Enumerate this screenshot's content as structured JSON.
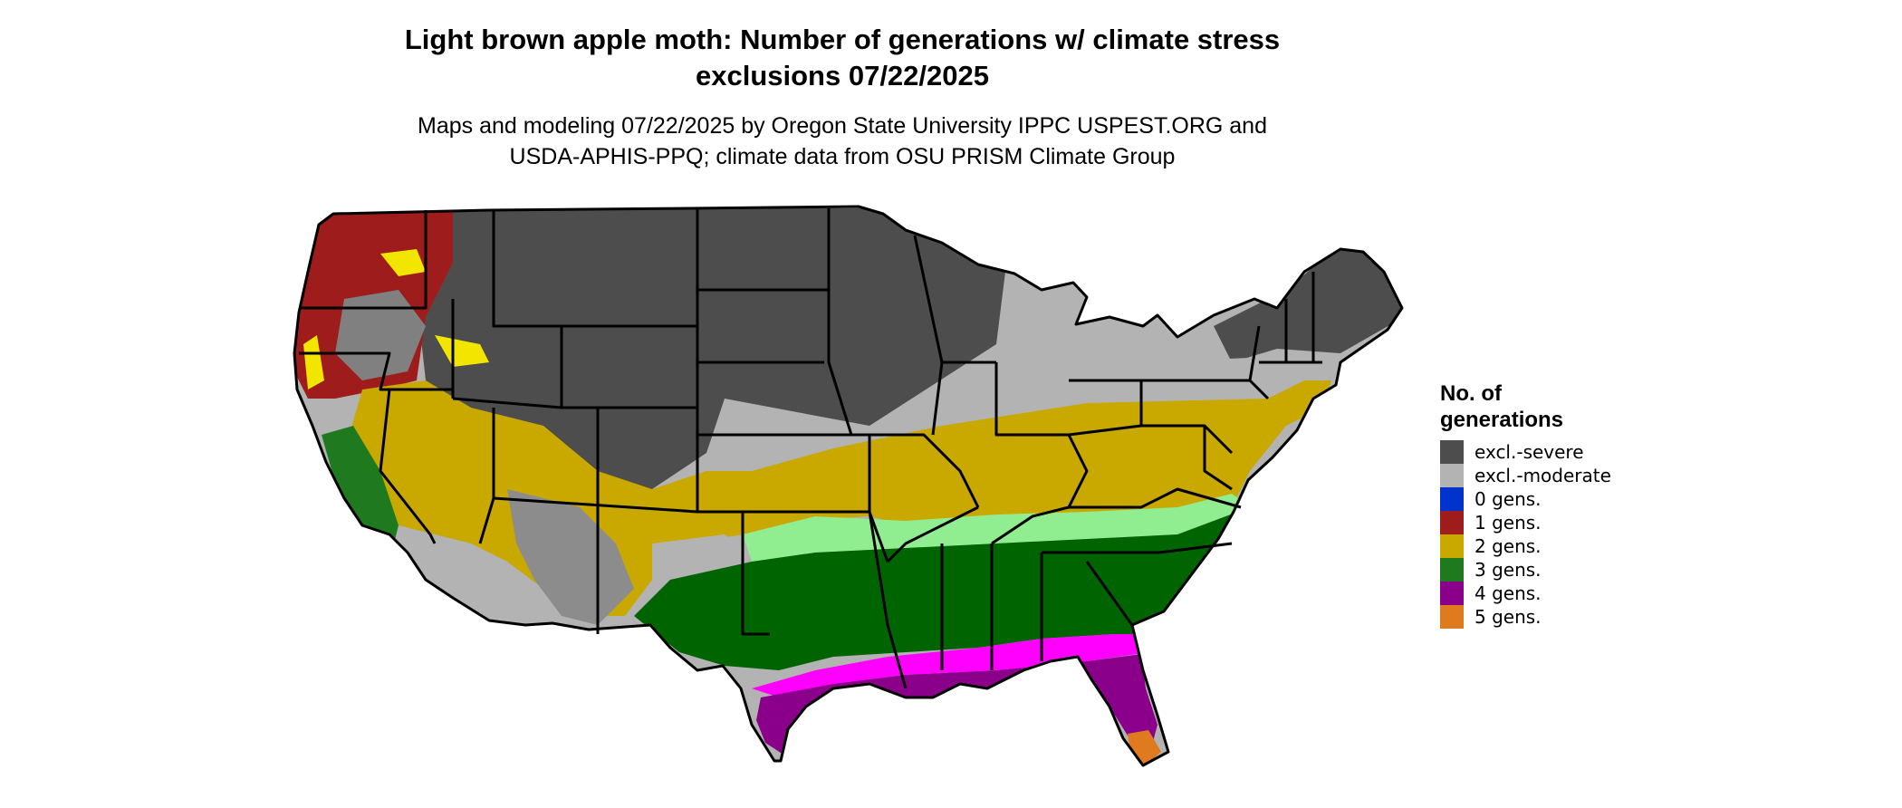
{
  "title_line1": "Light brown apple moth: Number of generations w/ climate stress",
  "title_line2": "exclusions 07/22/2025",
  "subtitle_line1": "Maps and modeling 07/22/2025 by Oregon State University IPPC USPEST.ORG and",
  "subtitle_line2": "USDA-APHIS-PPQ; climate data from OSU PRISM Climate Group",
  "legend": {
    "title_line1": "No. of",
    "title_line2": "generations",
    "items": [
      {
        "label": "excl.-severe",
        "color": "#4d4d4d"
      },
      {
        "label": "excl.-moderate",
        "color": "#b3b3b3"
      },
      {
        "label": "0 gens.",
        "color": "#0033cc"
      },
      {
        "label": "1 gens.",
        "color": "#9e1c1c"
      },
      {
        "label": "2 gens.",
        "color": "#c9a800"
      },
      {
        "label": "3 gens.",
        "color": "#1f7a1f"
      },
      {
        "label": "4 gens.",
        "color": "#8b008b"
      },
      {
        "label": "5 gens.",
        "color": "#e07a1f"
      }
    ]
  },
  "map_colors": {
    "excl_severe": "#4d4d4d",
    "excl_moderate": "#b3b3b3",
    "gen1": "#9e1c1c",
    "gen2": "#c9a800",
    "gen2_bright": "#f2e600",
    "gen3": "#006400",
    "gen3_light": "#90ee90",
    "gen4": "#8b008b",
    "gen4_bright": "#ff00ff",
    "gen5": "#e07a1f",
    "state_border": "#000000"
  }
}
